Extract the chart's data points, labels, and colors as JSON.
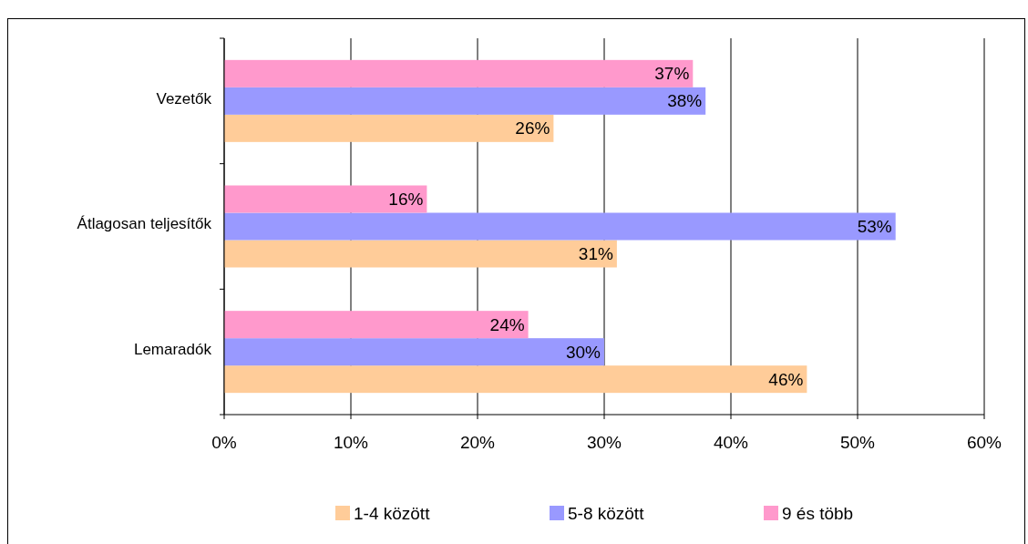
{
  "chart_data": {
    "type": "bar",
    "orientation": "horizontal",
    "categories": [
      "Vezetők",
      "Átlagosan teljesítők",
      "Lemaradók"
    ],
    "series": [
      {
        "name": "1-4 között",
        "color": "#ffcc99",
        "values": [
          26,
          31,
          46
        ],
        "value_labels": [
          "26%",
          "31%",
          "46%"
        ]
      },
      {
        "name": "5-8 között",
        "color": "#9999ff",
        "values": [
          38,
          53,
          30
        ],
        "value_labels": [
          "38%",
          "53%",
          "30%"
        ]
      },
      {
        "name": "9 és több",
        "color": "#ff99cc",
        "values": [
          37,
          16,
          24
        ],
        "value_labels": [
          "37%",
          "16%",
          "24%"
        ]
      }
    ],
    "xlim": [
      0,
      60
    ],
    "xticks": [
      {
        "value": 0,
        "label": "0%"
      },
      {
        "value": 10,
        "label": "10%"
      },
      {
        "value": 20,
        "label": "20%"
      },
      {
        "value": 30,
        "label": "30%"
      },
      {
        "value": 40,
        "label": "40%"
      },
      {
        "value": 50,
        "label": "50%"
      },
      {
        "value": 60,
        "label": "60%"
      }
    ],
    "grid": "x",
    "legend": "bottom"
  }
}
